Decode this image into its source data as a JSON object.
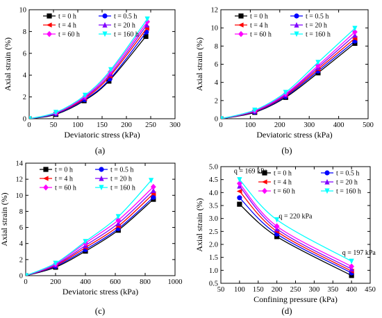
{
  "figure": {
    "panel_labels": [
      "(a)",
      "(b)",
      "(c)",
      "(d)"
    ]
  },
  "legend_labels": [
    "t = 0 h",
    "t = 0.5 h",
    "t = 4 h",
    "t = 20 h",
    "t = 60 h",
    "t = 160 h"
  ],
  "colors": {
    "t0": "#000000",
    "t05": "#0000ff",
    "t4": "#ff0000",
    "t20": "#8000ff",
    "t60": "#ff00ff",
    "t160": "#00ffff"
  },
  "chart_data": [
    {
      "type": "line",
      "panel": "(a)",
      "xlabel": "Deviatoric stress (kPa)",
      "ylabel": "Axial strain (%)",
      "xlim": [
        0,
        300
      ],
      "ylim": [
        0,
        10
      ],
      "xticks": [
        0,
        50,
        100,
        150,
        200,
        250,
        300
      ],
      "yticks": [
        0,
        2,
        4,
        6,
        8,
        10
      ],
      "legend_position": "top-left",
      "series": [
        {
          "name": "t = 0 h",
          "color": "#000000",
          "marker": "square",
          "x": [
            0,
            55,
            113,
            164,
            240
          ],
          "y": [
            0,
            0.4,
            1.65,
            3.45,
            7.55
          ]
        },
        {
          "name": "t = 0.5 h",
          "color": "#0000ff",
          "marker": "circle",
          "x": [
            0,
            55,
            114,
            166,
            241
          ],
          "y": [
            0,
            0.45,
            1.75,
            3.65,
            7.95
          ]
        },
        {
          "name": "t = 4 h",
          "color": "#ff0000",
          "marker": "triangle-left",
          "x": [
            0,
            55,
            114,
            166,
            242
          ],
          "y": [
            0,
            0.5,
            1.85,
            3.9,
            8.3
          ]
        },
        {
          "name": "t = 20 h",
          "color": "#8000ff",
          "marker": "triangle-up",
          "x": [
            0,
            55,
            114,
            167,
            242
          ],
          "y": [
            0,
            0.52,
            1.95,
            4.1,
            8.6
          ]
        },
        {
          "name": "t = 60 h",
          "color": "#ff00ff",
          "marker": "diamond",
          "x": [
            0,
            55,
            115,
            167,
            243
          ],
          "y": [
            0,
            0.55,
            2.05,
            4.3,
            8.9
          ]
        },
        {
          "name": "t = 160 h",
          "color": "#00ffff",
          "marker": "triangle-down",
          "x": [
            0,
            55,
            115,
            168,
            243
          ],
          "y": [
            0,
            0.58,
            2.15,
            4.5,
            9.15
          ]
        }
      ]
    },
    {
      "type": "line",
      "panel": "(b)",
      "xlabel": "Deviatoric stress (kPa)",
      "ylabel": "Axial strain (%)",
      "xlim": [
        0,
        500
      ],
      "ylim": [
        0,
        12
      ],
      "xticks": [
        0,
        100,
        200,
        300,
        400,
        500
      ],
      "yticks": [
        0,
        2,
        4,
        6,
        8,
        10,
        12
      ],
      "legend_position": "top-left",
      "series": [
        {
          "name": "t = 0 h",
          "color": "#000000",
          "marker": "square",
          "x": [
            0,
            115,
            220,
            330,
            455
          ],
          "y": [
            0,
            0.7,
            2.35,
            5.05,
            8.3
          ]
        },
        {
          "name": "t = 0.5 h",
          "color": "#0000ff",
          "marker": "circle",
          "x": [
            0,
            115,
            220,
            330,
            455
          ],
          "y": [
            0,
            0.75,
            2.45,
            5.25,
            8.55
          ]
        },
        {
          "name": "t = 4 h",
          "color": "#ff0000",
          "marker": "triangle-left",
          "x": [
            0,
            115,
            220,
            330,
            455
          ],
          "y": [
            0,
            0.8,
            2.55,
            5.45,
            8.85
          ]
        },
        {
          "name": "t = 20 h",
          "color": "#8000ff",
          "marker": "triangle-up",
          "x": [
            0,
            115,
            220,
            330,
            455
          ],
          "y": [
            0,
            0.85,
            2.65,
            5.65,
            9.2
          ]
        },
        {
          "name": "t = 60 h",
          "color": "#ff00ff",
          "marker": "diamond",
          "x": [
            0,
            115,
            220,
            330,
            455
          ],
          "y": [
            0,
            0.9,
            2.75,
            5.85,
            9.55
          ]
        },
        {
          "name": "t = 160 h",
          "color": "#00ffff",
          "marker": "triangle-down",
          "x": [
            0,
            115,
            220,
            330,
            455
          ],
          "y": [
            0,
            0.95,
            2.9,
            6.2,
            9.95
          ]
        }
      ]
    },
    {
      "type": "line",
      "panel": "(c)",
      "xlabel": "Deviatoric stress (kPa)",
      "ylabel": "Axial strain (%)",
      "xlim": [
        0,
        1000
      ],
      "ylim": [
        0,
        14
      ],
      "xticks": [
        0,
        200,
        400,
        600,
        800,
        1000
      ],
      "yticks": [
        0,
        2,
        4,
        6,
        8,
        10,
        12,
        14
      ],
      "legend_position": "top-left",
      "series": [
        {
          "name": "t = 0 h",
          "color": "#000000",
          "marker": "square",
          "x": [
            0,
            200,
            400,
            620,
            855
          ],
          "y": [
            0,
            1.05,
            3.05,
            5.65,
            9.5
          ]
        },
        {
          "name": "t = 0.5 h",
          "color": "#0000ff",
          "marker": "circle",
          "x": [
            0,
            200,
            400,
            620,
            855
          ],
          "y": [
            0,
            1.15,
            3.25,
            5.85,
            9.75
          ]
        },
        {
          "name": "t = 4 h",
          "color": "#ff0000",
          "marker": "triangle-left",
          "x": [
            0,
            200,
            400,
            620,
            855
          ],
          "y": [
            0,
            1.25,
            3.5,
            6.15,
            10.2
          ]
        },
        {
          "name": "t = 20 h",
          "color": "#8000ff",
          "marker": "triangle-up",
          "x": [
            0,
            200,
            400,
            620,
            855
          ],
          "y": [
            0,
            1.35,
            3.75,
            6.5,
            10.6
          ]
        },
        {
          "name": "t = 60 h",
          "color": "#ff00ff",
          "marker": "diamond",
          "x": [
            0,
            200,
            400,
            620,
            855
          ],
          "y": [
            0,
            1.45,
            4.05,
            6.9,
            11.05
          ]
        },
        {
          "name": "t = 160 h",
          "color": "#00ffff",
          "marker": "triangle-down",
          "x": [
            0,
            200,
            400,
            620,
            840
          ],
          "y": [
            0,
            1.55,
            4.25,
            7.35,
            11.85
          ]
        }
      ]
    },
    {
      "type": "line",
      "panel": "(d)",
      "xlabel": "Confining pressure (kPa)",
      "ylabel": "Axial strain (%)",
      "xlim": [
        50,
        450
      ],
      "ylim": [
        0.5,
        5.0
      ],
      "xticks": [
        50,
        100,
        150,
        200,
        250,
        300,
        350,
        400,
        450
      ],
      "yticks": [
        0.5,
        1.0,
        1.5,
        2.0,
        2.5,
        3.0,
        3.5,
        4.0,
        4.5,
        5.0
      ],
      "legend_position": "top-right",
      "annotations": [
        {
          "text": "q = 169 kPa",
          "x": 100,
          "y": 4.75
        },
        {
          "text": "q = 220 kPa",
          "x": 205,
          "y": 3.0
        },
        {
          "text": "q = 197 kPa",
          "x": 375,
          "y": 1.6
        }
      ],
      "series": [
        {
          "name": "t = 0 h",
          "color": "#000000",
          "marker": "square",
          "x": [
            100,
            200,
            400
          ],
          "y": [
            3.55,
            2.3,
            0.8
          ]
        },
        {
          "name": "t = 0.5 h",
          "color": "#0000ff",
          "marker": "circle",
          "x": [
            100,
            200,
            400
          ],
          "y": [
            3.8,
            2.4,
            0.9
          ]
        },
        {
          "name": "t = 4 h",
          "color": "#ff0000",
          "marker": "triangle-left",
          "x": [
            100,
            200,
            400
          ],
          "y": [
            4.05,
            2.5,
            0.97
          ]
        },
        {
          "name": "t = 20 h",
          "color": "#8000ff",
          "marker": "triangle-up",
          "x": [
            100,
            200,
            400
          ],
          "y": [
            4.25,
            2.6,
            1.05
          ]
        },
        {
          "name": "t = 60 h",
          "color": "#ff00ff",
          "marker": "diamond",
          "x": [
            100,
            200,
            400
          ],
          "y": [
            4.35,
            2.7,
            1.15
          ]
        },
        {
          "name": "t = 160 h",
          "color": "#00ffff",
          "marker": "triangle-down",
          "x": [
            100,
            200,
            400
          ],
          "y": [
            4.5,
            2.95,
            1.35
          ]
        }
      ]
    }
  ]
}
